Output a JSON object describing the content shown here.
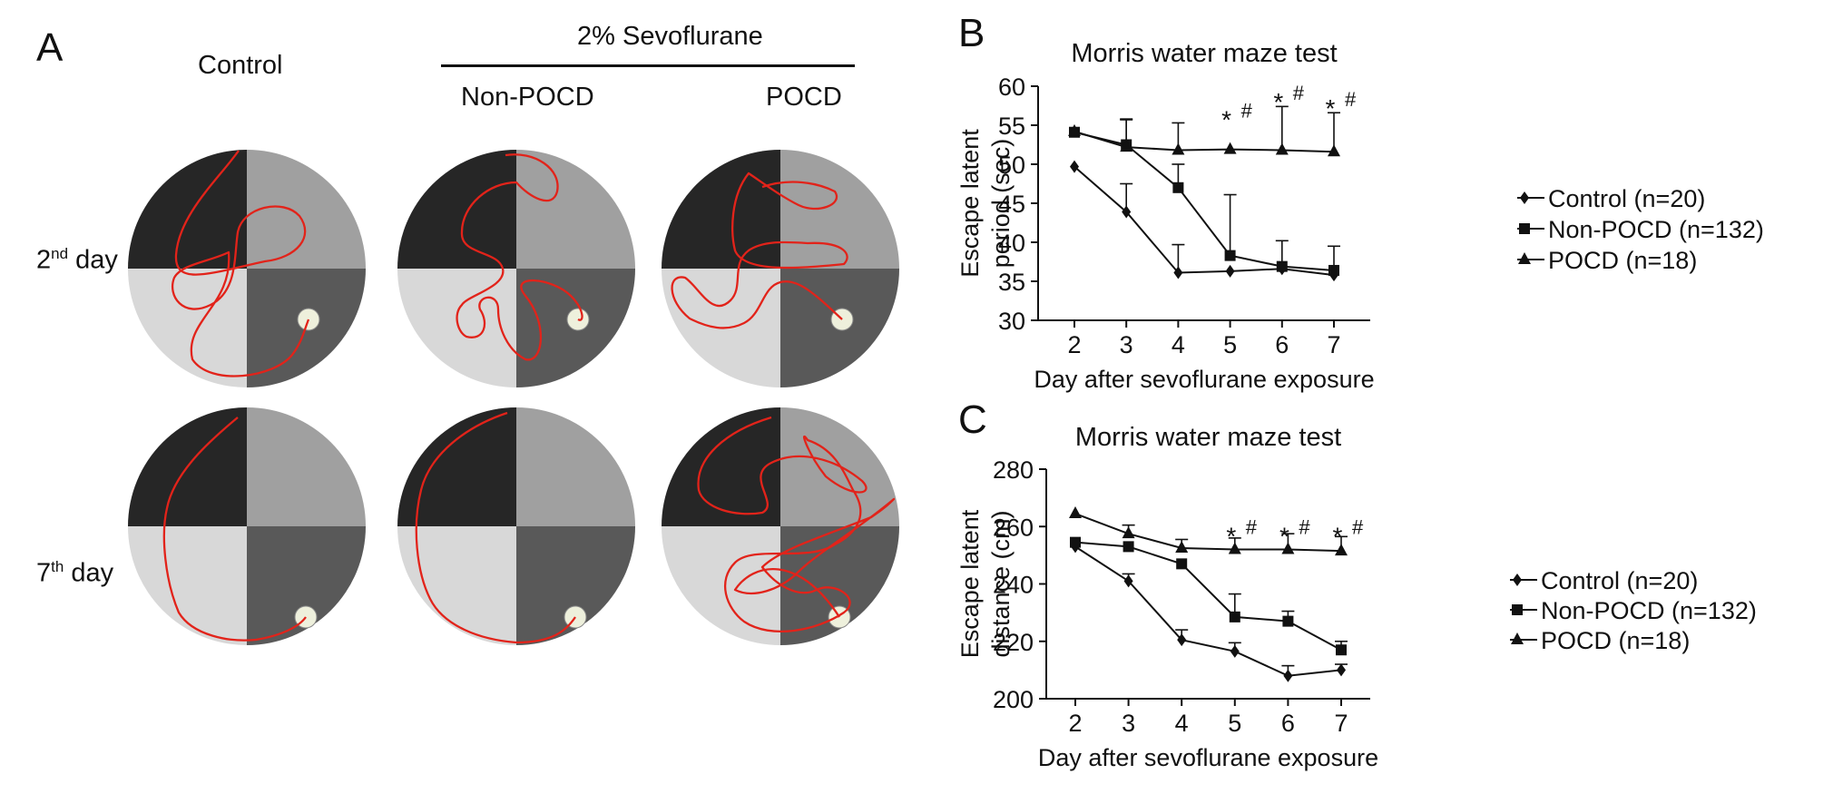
{
  "panels": {
    "a": "A",
    "b": "B",
    "c": "C"
  },
  "panel_a": {
    "control_label": "Control",
    "sevo_label": "2% Sevoflurane",
    "non_pocd_label": "Non-POCD",
    "pocd_label": "POCD",
    "row1": {
      "num": "2",
      "sup": "nd",
      "word": "day"
    },
    "row2": {
      "num": "7",
      "sup": "th",
      "word": "day"
    },
    "colors": {
      "q_dark": "#262626",
      "q_mid": "#a0a0a0",
      "q_light": "#d8d8d8",
      "q_darkgray": "#595959",
      "platform": "#eef0dc",
      "path": "#e2231a"
    }
  },
  "chart_data": [
    {
      "type": "line",
      "title": "Morris water maze test",
      "xlabel": "Day after sevoflurane exposure",
      "ylabel_line1": "Escape latent",
      "ylabel_line2": "period (sec)",
      "x": [
        2,
        3,
        4,
        5,
        6,
        7
      ],
      "ylim": [
        30,
        60
      ],
      "yticks": [
        30,
        35,
        40,
        45,
        50,
        55,
        60
      ],
      "series": [
        {
          "name": "Control (n=20)",
          "marker": "diamond",
          "values": [
            49.7,
            43.9,
            36.1,
            36.3,
            36.6,
            35.8
          ],
          "errors": [
            0,
            3.6,
            3.6,
            0,
            0,
            0
          ]
        },
        {
          "name": "Non-POCD (n=132)",
          "marker": "square",
          "values": [
            54.1,
            52.5,
            47.0,
            38.3,
            36.9,
            36.4
          ],
          "errors": [
            0,
            3.2,
            3.0,
            7.8,
            3.3,
            3.1
          ]
        },
        {
          "name": "POCD (n=18)",
          "marker": "triangle",
          "values": [
            54.2,
            52.2,
            51.8,
            51.9,
            51.8,
            51.6
          ],
          "errors": [
            0,
            3.6,
            3.5,
            0,
            5.6,
            5.0
          ]
        }
      ],
      "annotations": [
        {
          "x": 5,
          "star": "*",
          "hash": "#",
          "y": 56.2
        },
        {
          "x": 6,
          "star": "*",
          "hash": "#",
          "y": 58.5
        },
        {
          "x": 7,
          "star": "*",
          "hash": "#",
          "y": 57.7
        }
      ]
    },
    {
      "type": "line",
      "title": "Morris water maze test",
      "xlabel": "Day after sevoflurane exposure",
      "ylabel_line1": "Escape latent",
      "ylabel_line2": "distance (cm)",
      "x": [
        2,
        3,
        4,
        5,
        6,
        7
      ],
      "ylim": [
        200,
        280
      ],
      "yticks": [
        200,
        220,
        240,
        260,
        280
      ],
      "series": [
        {
          "name": "Control (n=20)",
          "marker": "diamond",
          "values": [
            253,
            241,
            220.5,
            216.5,
            208,
            210
          ],
          "errors": [
            0,
            2.5,
            3.5,
            3,
            3.5,
            2
          ]
        },
        {
          "name": "Non-POCD (n=132)",
          "marker": "square",
          "values": [
            254.5,
            253,
            247,
            228.5,
            227,
            217
          ],
          "errors": [
            0,
            0,
            0,
            8,
            3.5,
            3
          ]
        },
        {
          "name": "POCD (n=18)",
          "marker": "triangle",
          "values": [
            264.5,
            257.5,
            252.5,
            252,
            252,
            251.5
          ],
          "errors": [
            0,
            3,
            3,
            4,
            5.5,
            5
          ]
        }
      ],
      "annotations": [
        {
          "x": 5,
          "star": "*",
          "hash": "#",
          "y": 258
        },
        {
          "x": 6,
          "star": "*",
          "hash": "#",
          "y": 258
        },
        {
          "x": 7,
          "star": "*",
          "hash": "#",
          "y": 258
        }
      ]
    }
  ]
}
